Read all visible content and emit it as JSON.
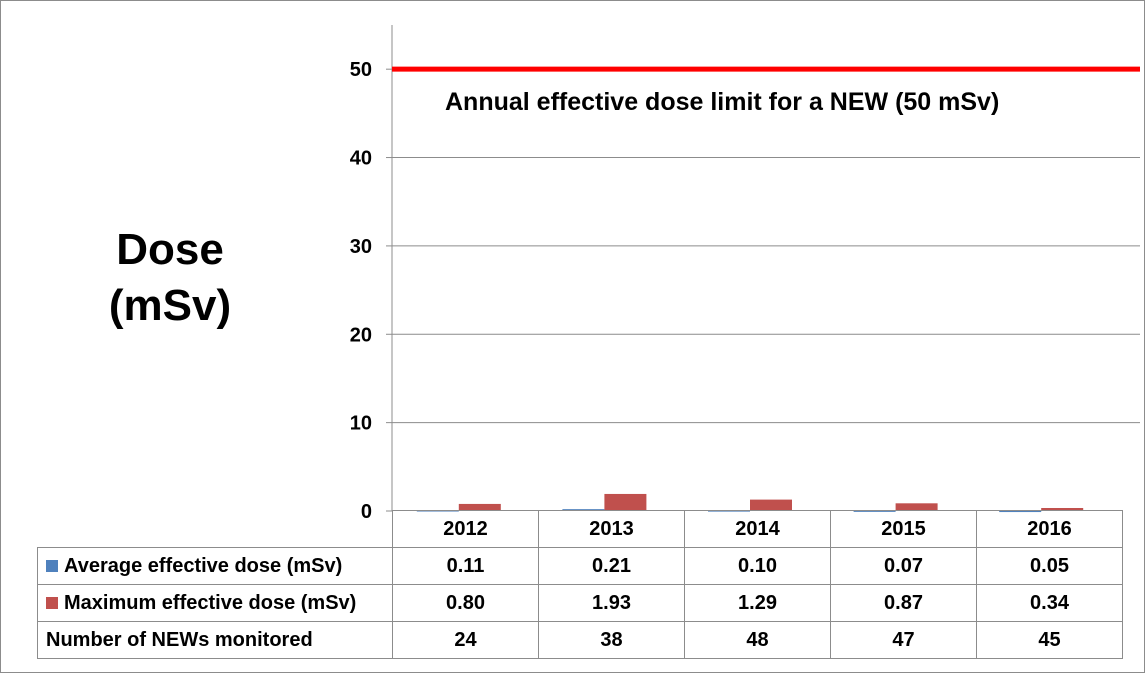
{
  "chart_data": {
    "type": "bar",
    "ylabel_line1": "Dose",
    "ylabel_line2": "(mSv)",
    "categories": [
      "2012",
      "2013",
      "2014",
      "2015",
      "2016"
    ],
    "series": [
      {
        "name": "Average effective dose (mSv)",
        "color": "#4f81bd",
        "values": [
          0.11,
          0.21,
          0.1,
          0.07,
          0.05
        ]
      },
      {
        "name": "Maximum effective dose (mSv)",
        "color": "#c0504d",
        "values": [
          0.8,
          1.93,
          1.29,
          0.87,
          0.34
        ]
      }
    ],
    "ylim": [
      0,
      55
    ],
    "yticks": [
      0,
      10,
      20,
      30,
      40,
      50
    ],
    "grid": true,
    "limit_line": {
      "value": 50,
      "color": "#ff0000",
      "label": "Annual effective dose limit for a NEW (50 mSv)"
    },
    "table": {
      "value_rows": [
        {
          "label": "Average effective dose (mSv)",
          "values": [
            "0.11",
            "0.21",
            "0.10",
            "0.07",
            "0.05"
          ]
        },
        {
          "label": "Maximum effective dose (mSv)",
          "values": [
            "0.80",
            "1.93",
            "1.29",
            "0.87",
            "0.34"
          ]
        },
        {
          "label": "Number of NEWs monitored",
          "values": [
            "24",
            "38",
            "48",
            "47",
            "45"
          ]
        }
      ]
    }
  }
}
